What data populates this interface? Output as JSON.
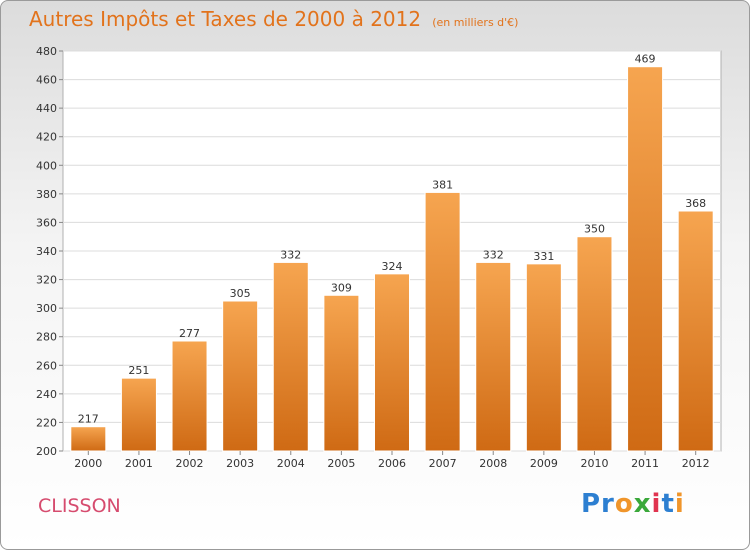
{
  "chart_data": {
    "type": "bar",
    "title": "Autres Impôts et Taxes de 2000 à 2012",
    "subtitle": "(en milliers d'€)",
    "categories": [
      "2000",
      "2001",
      "2002",
      "2003",
      "2004",
      "2005",
      "2006",
      "2007",
      "2008",
      "2009",
      "2010",
      "2011",
      "2012"
    ],
    "values": [
      217,
      251,
      277,
      305,
      332,
      309,
      324,
      381,
      332,
      331,
      350,
      469,
      368
    ],
    "ylim": [
      200,
      480
    ],
    "yticks": [
      200,
      220,
      240,
      260,
      280,
      300,
      320,
      340,
      360,
      380,
      400,
      420,
      440,
      460,
      480
    ],
    "xlabel": "",
    "ylabel": "",
    "grid": true,
    "bar_color": "#f0922c"
  },
  "footer": {
    "city": "CLISSON",
    "logo": [
      "Pr",
      "o",
      "x",
      "i",
      "t",
      "i"
    ]
  }
}
